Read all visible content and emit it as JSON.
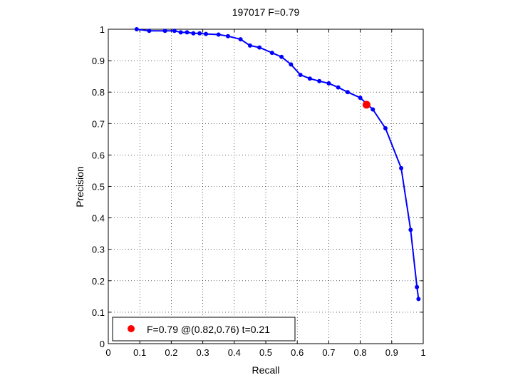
{
  "chart_data": {
    "type": "line",
    "title": "197017 F=0.79",
    "xlabel": "Recall",
    "ylabel": "Precision",
    "xlim": [
      0,
      1
    ],
    "ylim": [
      0,
      1
    ],
    "xticks": [
      "0",
      "0.1",
      "0.2",
      "0.3",
      "0.4",
      "0.5",
      "0.6",
      "0.7",
      "0.8",
      "0.9",
      "1"
    ],
    "yticks": [
      "0",
      "0.1",
      "0.2",
      "0.3",
      "0.4",
      "0.5",
      "0.6",
      "0.7",
      "0.8",
      "0.9",
      "1"
    ],
    "grid": true,
    "series": [
      {
        "color": "#0000ff",
        "points": [
          [
            0.09,
            1.0
          ],
          [
            0.13,
            0.995
          ],
          [
            0.18,
            0.995
          ],
          [
            0.21,
            0.995
          ],
          [
            0.23,
            0.99
          ],
          [
            0.25,
            0.99
          ],
          [
            0.27,
            0.987
          ],
          [
            0.29,
            0.987
          ],
          [
            0.31,
            0.985
          ],
          [
            0.35,
            0.983
          ],
          [
            0.38,
            0.978
          ],
          [
            0.42,
            0.968
          ],
          [
            0.45,
            0.948
          ],
          [
            0.48,
            0.942
          ],
          [
            0.52,
            0.925
          ],
          [
            0.55,
            0.912
          ],
          [
            0.58,
            0.888
          ],
          [
            0.61,
            0.855
          ],
          [
            0.64,
            0.843
          ],
          [
            0.67,
            0.835
          ],
          [
            0.7,
            0.828
          ],
          [
            0.73,
            0.815
          ],
          [
            0.76,
            0.8
          ],
          [
            0.8,
            0.782
          ],
          [
            0.84,
            0.745
          ],
          [
            0.88,
            0.685
          ],
          [
            0.93,
            0.558
          ],
          [
            0.96,
            0.362
          ],
          [
            0.98,
            0.18
          ],
          [
            0.985,
            0.142
          ]
        ]
      }
    ],
    "highlight": {
      "x": 0.82,
      "y": 0.76,
      "color": "#ff0000"
    },
    "legend": {
      "position": "bottom-left",
      "text": "F=0.79 @(0.82,0.76) t=0.21",
      "marker_color": "#ff0000"
    }
  }
}
